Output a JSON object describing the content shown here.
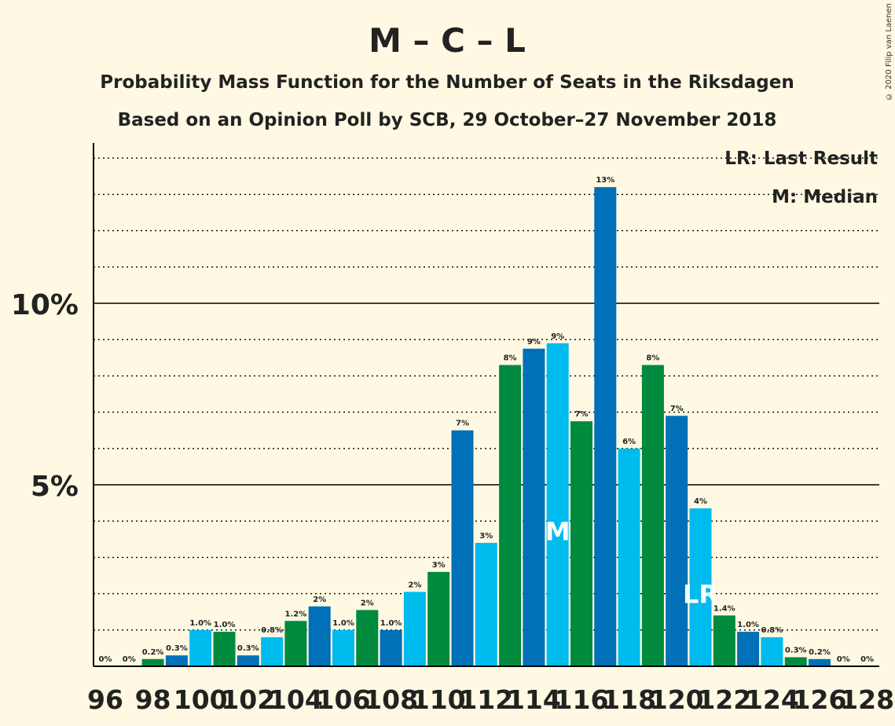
{
  "chart_data": {
    "type": "bar",
    "title": "M – C – L",
    "subtitle_1": "Probability Mass Function for the Number of Seats in the Riksdagen",
    "subtitle_2": "Based on an Opinion Poll by SCB, 29 October–27 November 2018",
    "copyright": "© 2020 Filip van Laenen",
    "legend": {
      "last_result": "LR: Last Result",
      "median": "M: Median",
      "placement": "top-right"
    },
    "y_ticks": [
      {
        "value": 5,
        "label": "5%"
      },
      {
        "value": 10,
        "label": "10%"
      }
    ],
    "ylim": [
      0,
      14.4
    ],
    "x_tick_labels": [
      "96",
      "98",
      "100",
      "102",
      "104",
      "106",
      "108",
      "110",
      "112",
      "114",
      "116",
      "118",
      "120",
      "122",
      "124",
      "126",
      "128"
    ],
    "colors": {
      "blue": "#0070B8",
      "cyan": "#00BBEE",
      "green": "#008A3E",
      "background": "#FFF9E3"
    },
    "median_seat": 115,
    "median_marker": "M",
    "last_result_seat": 121,
    "last_result_marker": "LR",
    "bars": [
      {
        "seat": 96,
        "value": 0,
        "label": "0%"
      },
      {
        "seat": 97,
        "value": 0,
        "label": "0%"
      },
      {
        "seat": 98,
        "value": 0.2,
        "label": "0.2%"
      },
      {
        "seat": 99,
        "value": 0.3,
        "label": "0.3%"
      },
      {
        "seat": 100,
        "value": 1.0,
        "label": "1.0%"
      },
      {
        "seat": 101,
        "value": 0.95,
        "label": "1.0%"
      },
      {
        "seat": 102,
        "value": 0.3,
        "label": "0.3%"
      },
      {
        "seat": 103,
        "value": 0.8,
        "label": "0.8%"
      },
      {
        "seat": 104,
        "value": 1.25,
        "label": "1.2%"
      },
      {
        "seat": 105,
        "value": 1.65,
        "label": "2%"
      },
      {
        "seat": 106,
        "value": 1.0,
        "label": "1.0%"
      },
      {
        "seat": 107,
        "value": 1.55,
        "label": "2%"
      },
      {
        "seat": 108,
        "value": 1.0,
        "label": "1.0%"
      },
      {
        "seat": 109,
        "value": 2.05,
        "label": "2%"
      },
      {
        "seat": 110,
        "value": 2.6,
        "label": "3%"
      },
      {
        "seat": 111,
        "value": 6.5,
        "label": "7%"
      },
      {
        "seat": 112,
        "value": 3.4,
        "label": "3%"
      },
      {
        "seat": 113,
        "value": 8.3,
        "label": "8%"
      },
      {
        "seat": 114,
        "value": 8.75,
        "label": "9%"
      },
      {
        "seat": 115,
        "value": 8.9,
        "label": "9%"
      },
      {
        "seat": 116,
        "value": 6.75,
        "label": "7%"
      },
      {
        "seat": 117,
        "value": 13.2,
        "label": "13%"
      },
      {
        "seat": 118,
        "value": 6.0,
        "label": "6%"
      },
      {
        "seat": 119,
        "value": 8.3,
        "label": "8%"
      },
      {
        "seat": 120,
        "value": 6.9,
        "label": "7%"
      },
      {
        "seat": 121,
        "value": 4.35,
        "label": "4%"
      },
      {
        "seat": 122,
        "value": 1.4,
        "label": "1.4%"
      },
      {
        "seat": 123,
        "value": 0.95,
        "label": "1.0%"
      },
      {
        "seat": 124,
        "value": 0.8,
        "label": "0.8%"
      },
      {
        "seat": 125,
        "value": 0.25,
        "label": "0.3%"
      },
      {
        "seat": 126,
        "value": 0.2,
        "label": "0.2%"
      },
      {
        "seat": 127,
        "value": 0,
        "label": "0%"
      },
      {
        "seat": 128,
        "value": 0,
        "label": "0%"
      }
    ]
  }
}
